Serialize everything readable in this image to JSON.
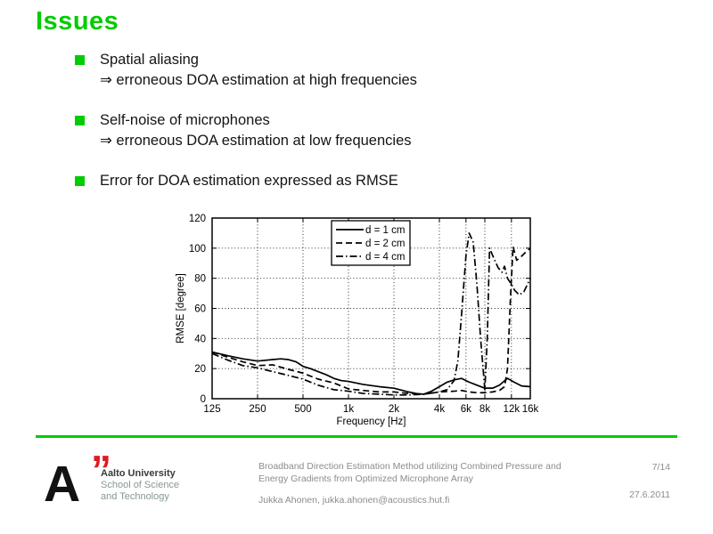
{
  "slide": {
    "title": "Issues",
    "bullets": [
      {
        "text": "Spatial aliasing",
        "sub": "⇒ erroneous DOA estimation at high frequencies"
      },
      {
        "text": "Self-noise of microphones",
        "sub": "⇒ erroneous DOA estimation at low frequencies"
      },
      {
        "text": "Error for DOA estimation expressed as RMSE",
        "sub": ""
      }
    ]
  },
  "chart_data": {
    "type": "line",
    "title": "",
    "xlabel": "Frequency [Hz]",
    "ylabel": "RMSE [degree]",
    "x_scale": "log",
    "xlim": [
      125,
      16000
    ],
    "ylim": [
      0,
      120
    ],
    "x_ticks": [
      125,
      250,
      500,
      1000,
      2000,
      4000,
      6000,
      8000,
      12000,
      16000
    ],
    "x_tick_labels": [
      "125",
      "250",
      "500",
      "1k",
      "2k",
      "4k",
      "6k",
      "8k",
      "12k",
      "16k"
    ],
    "y_ticks": [
      0,
      20,
      40,
      60,
      80,
      100,
      120
    ],
    "grid": true,
    "legend_position": "top-left-inner",
    "series": [
      {
        "name": "d = 1 cm",
        "style": "solid",
        "points": [
          [
            125,
            31
          ],
          [
            160,
            28.5
          ],
          [
            200,
            26.5
          ],
          [
            250,
            25
          ],
          [
            315,
            26
          ],
          [
            355,
            26.5
          ],
          [
            400,
            26
          ],
          [
            450,
            24.5
          ],
          [
            500,
            21.5
          ],
          [
            560,
            20
          ],
          [
            630,
            18
          ],
          [
            710,
            16
          ],
          [
            800,
            13.5
          ],
          [
            900,
            12
          ],
          [
            1000,
            11.5
          ],
          [
            1250,
            9.5
          ],
          [
            1600,
            8
          ],
          [
            2000,
            7
          ],
          [
            2500,
            4.5
          ],
          [
            2800,
            3.5
          ],
          [
            3150,
            3
          ],
          [
            3550,
            5
          ],
          [
            4000,
            8
          ],
          [
            4500,
            11
          ],
          [
            5000,
            12.5
          ],
          [
            5600,
            13.5
          ],
          [
            6300,
            11
          ],
          [
            7100,
            9
          ],
          [
            8000,
            7
          ],
          [
            9000,
            7
          ],
          [
            10000,
            9
          ],
          [
            11300,
            13.5
          ],
          [
            12500,
            11
          ],
          [
            14000,
            8.5
          ],
          [
            16000,
            8
          ]
        ]
      },
      {
        "name": "d = 2 cm",
        "style": "dashed",
        "points": [
          [
            125,
            31
          ],
          [
            160,
            27.5
          ],
          [
            200,
            24.5
          ],
          [
            250,
            22
          ],
          [
            315,
            22.5
          ],
          [
            400,
            19.5
          ],
          [
            500,
            17
          ],
          [
            630,
            13
          ],
          [
            800,
            10.5
          ],
          [
            1000,
            6.5
          ],
          [
            1250,
            5.5
          ],
          [
            1600,
            4.5
          ],
          [
            2000,
            4.5
          ],
          [
            2500,
            3.5
          ],
          [
            3150,
            3
          ],
          [
            4000,
            4.5
          ],
          [
            5000,
            5
          ],
          [
            5600,
            5.5
          ],
          [
            6300,
            4.5
          ],
          [
            7100,
            4
          ],
          [
            8000,
            4
          ],
          [
            9000,
            4.5
          ],
          [
            10000,
            5.5
          ],
          [
            10800,
            8
          ],
          [
            11300,
            20
          ],
          [
            11800,
            65
          ],
          [
            12300,
            101
          ],
          [
            13000,
            92
          ],
          [
            13800,
            94
          ],
          [
            14800,
            97
          ],
          [
            16000,
            100
          ]
        ]
      },
      {
        "name": "d = 4 cm",
        "style": "dashdot",
        "points": [
          [
            125,
            30
          ],
          [
            160,
            25.5
          ],
          [
            200,
            22
          ],
          [
            250,
            20.5
          ],
          [
            315,
            18
          ],
          [
            400,
            15.5
          ],
          [
            500,
            13
          ],
          [
            630,
            9
          ],
          [
            800,
            6
          ],
          [
            1000,
            5
          ],
          [
            1250,
            3.5
          ],
          [
            1600,
            3
          ],
          [
            2000,
            2.5
          ],
          [
            2500,
            2.5
          ],
          [
            3150,
            3
          ],
          [
            4000,
            4.5
          ],
          [
            4500,
            6
          ],
          [
            5000,
            12
          ],
          [
            5300,
            25
          ],
          [
            5600,
            55
          ],
          [
            6000,
            95
          ],
          [
            6300,
            110
          ],
          [
            6700,
            104
          ],
          [
            7100,
            75
          ],
          [
            7500,
            40
          ],
          [
            8000,
            6
          ],
          [
            8300,
            40
          ],
          [
            8600,
            100
          ],
          [
            9200,
            93
          ],
          [
            9800,
            87
          ],
          [
            10400,
            84
          ],
          [
            10800,
            88
          ],
          [
            11300,
            80
          ],
          [
            12000,
            76
          ],
          [
            12600,
            72
          ],
          [
            13500,
            69
          ],
          [
            14500,
            71
          ],
          [
            15500,
            77
          ],
          [
            16000,
            80
          ]
        ]
      }
    ]
  },
  "footer": {
    "logo_letter": "A",
    "logo_quote": "”",
    "org_line1": "Aalto University",
    "org_line2": "School of Science",
    "org_line3": "and Technology",
    "pres_line1": "Broadband Direction Estimation Method utilizing Combined Pressure and",
    "pres_line2": "Energy Gradients from Optimized Microphone Array",
    "author_line": "Jukka Ahonen, jukka.ahonen@acoustics.hut.fi",
    "page": "7/14",
    "date": "27.6.2011"
  },
  "colors": {
    "accent_green": "#00cc00",
    "logo_red": "#e11a22",
    "footer_gray": "#8c8c8c",
    "text_dark": "#141414"
  }
}
